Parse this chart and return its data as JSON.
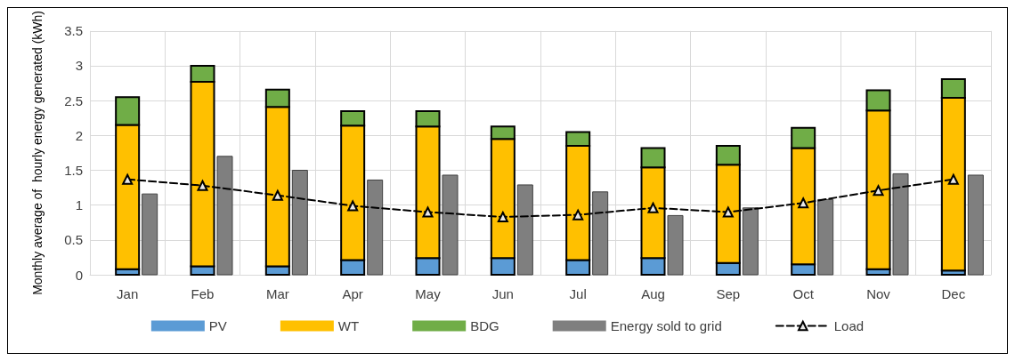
{
  "chart_data": {
    "type": "bar",
    "ylabel": "Monthly average of  hourly energy generated (kWh)",
    "categories": [
      "Jan",
      "Feb",
      "Mar",
      "Apr",
      "May",
      "Jun",
      "Jul",
      "Aug",
      "Sep",
      "Oct",
      "Nov",
      "Dec"
    ],
    "series": [
      {
        "name": "PV",
        "color": "#5b9bd5",
        "base": [
          0,
          0,
          0,
          0,
          0,
          0,
          0,
          0,
          0,
          0,
          0,
          0
        ],
        "values": [
          0.08,
          0.12,
          0.12,
          0.21,
          0.24,
          0.24,
          0.21,
          0.24,
          0.17,
          0.15,
          0.08,
          0.06
        ]
      },
      {
        "name": "WT",
        "color": "#ffc000",
        "base": [
          0.08,
          0.12,
          0.12,
          0.21,
          0.24,
          0.24,
          0.21,
          0.24,
          0.17,
          0.15,
          0.08,
          0.06
        ],
        "values": [
          2.07,
          2.65,
          2.29,
          1.93,
          1.89,
          1.71,
          1.64,
          1.3,
          1.41,
          1.67,
          2.28,
          2.48
        ]
      },
      {
        "name": "BDG",
        "color": "#70ad47",
        "base": [
          2.15,
          2.77,
          2.41,
          2.14,
          2.13,
          1.95,
          1.85,
          1.54,
          1.58,
          1.82,
          2.36,
          2.54
        ],
        "values": [
          0.4,
          0.23,
          0.25,
          0.21,
          0.22,
          0.18,
          0.2,
          0.28,
          0.27,
          0.29,
          0.29,
          0.27
        ]
      },
      {
        "name": "Energy sold to grid",
        "color": "#7f7f7f",
        "values": [
          1.16,
          1.7,
          1.5,
          1.36,
          1.43,
          1.29,
          1.19,
          0.85,
          0.96,
          1.08,
          1.45,
          1.43
        ]
      },
      {
        "name": "Load",
        "type": "line",
        "color": "#000000",
        "marker": "triangle",
        "line_style": "dashed",
        "values": [
          1.37,
          1.28,
          1.14,
          0.99,
          0.9,
          0.83,
          0.86,
          0.96,
          0.9,
          1.03,
          1.21,
          1.37
        ]
      }
    ],
    "ylim": [
      0,
      3.5
    ],
    "yticks": [
      0,
      0.5,
      1,
      1.5,
      2,
      2.5,
      3,
      3.5
    ],
    "grid": true,
    "legend": "bottom"
  }
}
